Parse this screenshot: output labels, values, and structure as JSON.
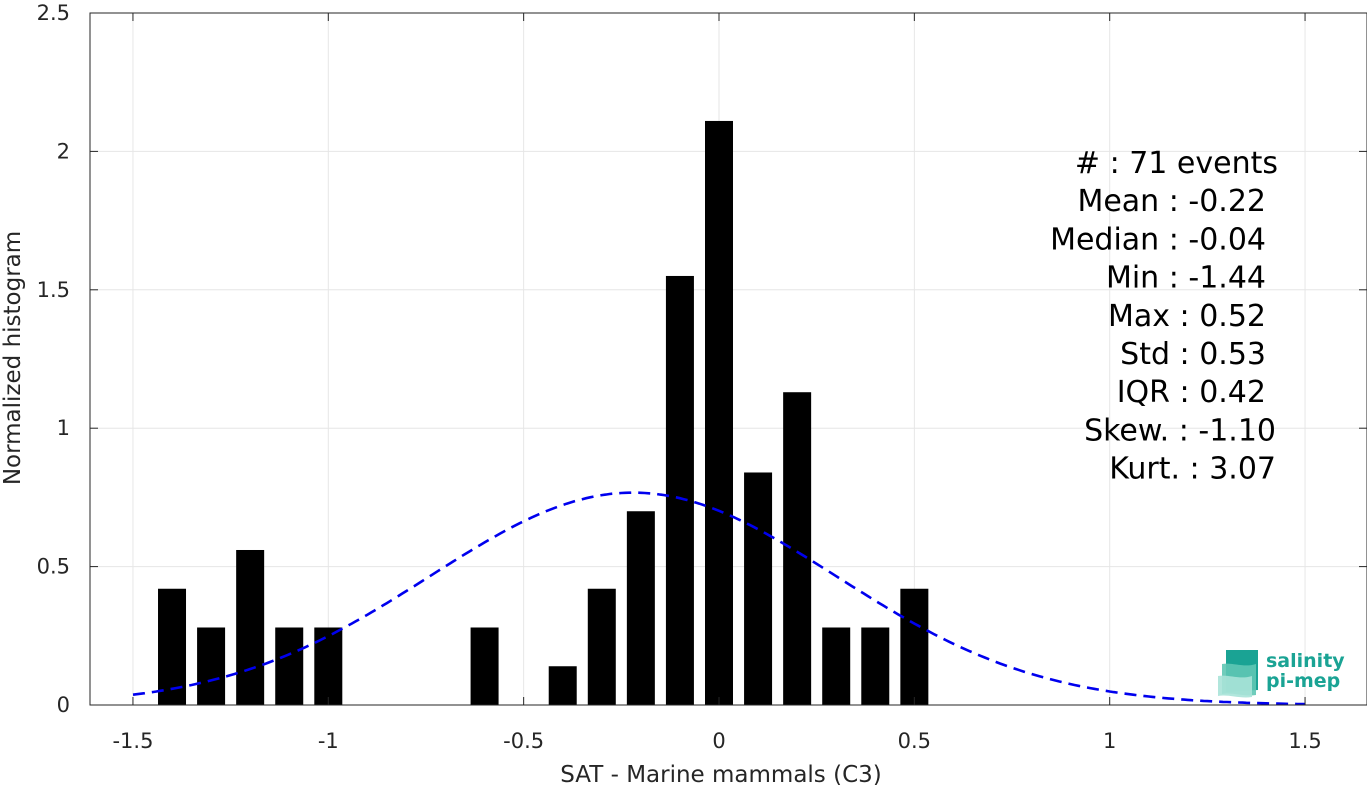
{
  "chart_data": {
    "type": "bar",
    "xlabel": "SAT - Marine mammals (C3)",
    "ylabel": "Normalized histogram",
    "xlim": [
      -1.6,
      1.6
    ],
    "ylim": [
      0,
      2.5
    ],
    "xticks": [
      -1.5,
      -1,
      -0.5,
      0,
      0.5,
      1,
      1.5
    ],
    "xtick_labels": [
      "-1.5",
      "-1",
      "-0.5",
      "0",
      "0.5",
      "1",
      "1.5"
    ],
    "yticks": [
      0,
      0.5,
      1,
      1.5,
      2,
      2.5
    ],
    "ytick_labels": [
      "0",
      "0.5",
      "1",
      "1.5",
      "2",
      "2.5"
    ],
    "grid": true,
    "bar_color": "#000000",
    "bin_width": 0.1,
    "bins": [
      {
        "x": -1.4,
        "value": 0.42
      },
      {
        "x": -1.3,
        "value": 0.28
      },
      {
        "x": -1.2,
        "value": 0.56
      },
      {
        "x": -1.1,
        "value": 0.28
      },
      {
        "x": -1.0,
        "value": 0.28
      },
      {
        "x": -0.6,
        "value": 0.28
      },
      {
        "x": -0.4,
        "value": 0.14
      },
      {
        "x": -0.3,
        "value": 0.42
      },
      {
        "x": -0.2,
        "value": 0.7
      },
      {
        "x": -0.1,
        "value": 1.55
      },
      {
        "x": 0.0,
        "value": 2.11
      },
      {
        "x": 0.1,
        "value": 0.84
      },
      {
        "x": 0.2,
        "value": 1.13
      },
      {
        "x": 0.3,
        "value": 0.28
      },
      {
        "x": 0.4,
        "value": 0.28
      },
      {
        "x": 0.5,
        "value": 0.42
      }
    ],
    "fit_curve": {
      "type": "normal",
      "style": "dashed",
      "color": "#0000ee",
      "mean": -0.22,
      "std": 0.52,
      "x_range": [
        -1.5,
        1.5
      ]
    }
  },
  "stats": [
    "#  : 71 events",
    "Mean : -0.22",
    "Median : -0.04",
    "Min : -1.44",
    "Max : 0.52",
    "Std : 0.53",
    "IQR : 0.42",
    "Skew. : -1.10",
    "Kurt. : 3.07"
  ],
  "logo": {
    "line1": "salinity",
    "line2": "pi-mep",
    "color": "#1aa394"
  }
}
